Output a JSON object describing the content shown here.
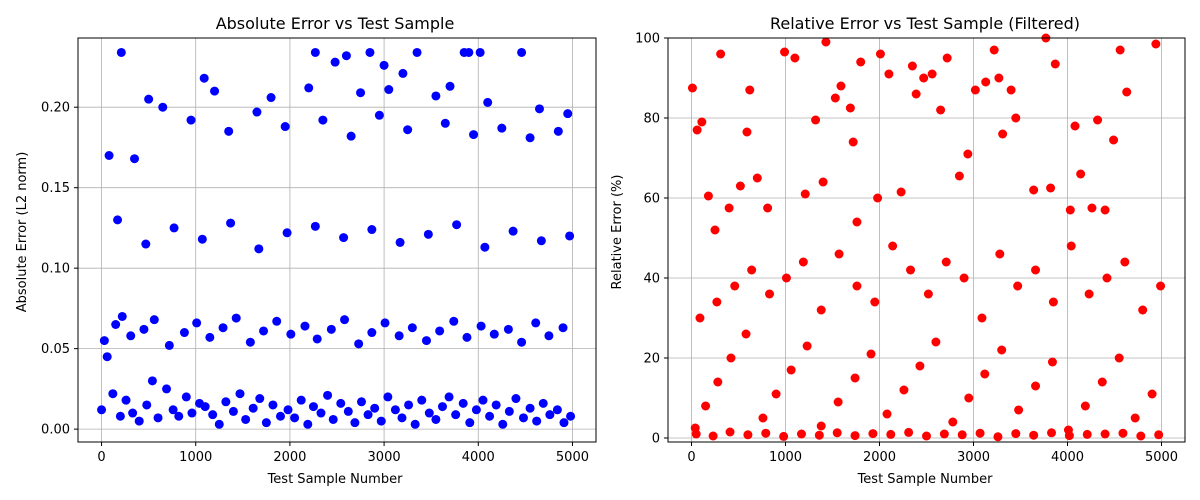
{
  "chart_data": [
    {
      "type": "scatter",
      "title": "Absolute Error vs Test Sample",
      "xlabel": "Test Sample Number",
      "ylabel": "Absolute Error (L2 norm)",
      "xlim": [
        -250,
        5250
      ],
      "ylim": [
        -0.008,
        0.243
      ],
      "xticks": [
        0,
        1000,
        2000,
        3000,
        4000,
        5000
      ],
      "yticks": [
        0.0,
        0.05,
        0.1,
        0.15,
        0.2
      ],
      "ytick_labels": [
        "0.00",
        "0.05",
        "0.10",
        "0.15",
        "0.20"
      ],
      "grid": true,
      "color": "#0000ff",
      "series": [
        {
          "x": [
            0,
            60,
            120,
            200,
            260,
            330,
            400,
            480,
            540,
            600,
            690,
            760,
            820,
            900,
            960,
            1040,
            1100,
            1180,
            1250,
            1320,
            1400,
            1470,
            1530,
            1610,
            1680,
            1750,
            1820,
            1900,
            1980,
            2050,
            2120,
            2190,
            2250,
            2330,
            2400,
            2460,
            2540,
            2620,
            2690,
            2760,
            2830,
            2900,
            2970,
            3040,
            3120,
            3190,
            3260,
            3330,
            3400,
            3480,
            3550,
            3620,
            3690,
            3760,
            3840,
            3910,
            3980,
            4050,
            4120,
            4190,
            4260,
            4330,
            4400,
            4480,
            4550,
            4620,
            4690,
            4760,
            4840,
            4910,
            4980,
            30,
            150,
            220,
            310,
            450,
            560,
            720,
            880,
            1010,
            1150,
            1290,
            1430,
            1580,
            1720,
            1860,
            2010,
            2160,
            2290,
            2440,
            2580,
            2730,
            2870,
            3010,
            3160,
            3300,
            3450,
            3590,
            3740,
            3880,
            4030,
            4170,
            4320,
            4460,
            4610,
            4750,
            4900,
            210,
            1090,
            2270,
            2480,
            2850,
            3350,
            3850,
            3900,
            4020,
            4460,
            3000,
            3700,
            2600,
            3200,
            500,
            1200,
            1800,
            2200,
            2750,
            3050,
            3550,
            4100,
            4650,
            4950,
            80,
            350,
            650,
            950,
            1350,
            1650,
            1950,
            2350,
            2650,
            2950,
            3250,
            3650,
            3950,
            4250,
            4550,
            4850,
            170,
            470,
            770,
            1070,
            1370,
            1670,
            1970,
            2270,
            2570,
            2870,
            3170,
            3470,
            3770,
            4070,
            4370,
            4670,
            4970
          ],
          "y": [
            0.012,
            0.045,
            0.022,
            0.008,
            0.018,
            0.01,
            0.005,
            0.015,
            0.03,
            0.007,
            0.025,
            0.012,
            0.008,
            0.02,
            0.01,
            0.016,
            0.014,
            0.009,
            0.003,
            0.017,
            0.011,
            0.022,
            0.006,
            0.013,
            0.019,
            0.004,
            0.015,
            0.008,
            0.012,
            0.007,
            0.018,
            0.003,
            0.014,
            0.01,
            0.021,
            0.006,
            0.016,
            0.011,
            0.004,
            0.017,
            0.009,
            0.013,
            0.005,
            0.02,
            0.012,
            0.007,
            0.015,
            0.003,
            0.018,
            0.01,
            0.006,
            0.014,
            0.02,
            0.009,
            0.016,
            0.004,
            0.012,
            0.018,
            0.008,
            0.015,
            0.003,
            0.011,
            0.019,
            0.007,
            0.013,
            0.005,
            0.016,
            0.009,
            0.012,
            0.004,
            0.008,
            0.055,
            0.065,
            0.07,
            0.058,
            0.062,
            0.068,
            0.052,
            0.06,
            0.066,
            0.057,
            0.063,
            0.069,
            0.054,
            0.061,
            0.067,
            0.059,
            0.064,
            0.056,
            0.062,
            0.068,
            0.053,
            0.06,
            0.066,
            0.058,
            0.063,
            0.055,
            0.061,
            0.067,
            0.057,
            0.064,
            0.059,
            0.062,
            0.054,
            0.066,
            0.058,
            0.063,
            0.234,
            0.218,
            0.234,
            0.228,
            0.234,
            0.234,
            0.234,
            0.234,
            0.234,
            0.234,
            0.226,
            0.213,
            0.232,
            0.221,
            0.205,
            0.21,
            0.206,
            0.212,
            0.209,
            0.211,
            0.207,
            0.203,
            0.199,
            0.196,
            0.17,
            0.168,
            0.2,
            0.192,
            0.185,
            0.197,
            0.188,
            0.192,
            0.182,
            0.195,
            0.186,
            0.19,
            0.183,
            0.187,
            0.181,
            0.185,
            0.13,
            0.115,
            0.125,
            0.118,
            0.128,
            0.112,
            0.122,
            0.126,
            0.119,
            0.124,
            0.116,
            0.121,
            0.127,
            0.113,
            0.123,
            0.117,
            0.12
          ]
        }
      ]
    },
    {
      "type": "scatter",
      "title": "Relative Error vs Test Sample (Filtered)",
      "xlabel": "Test Sample Number",
      "ylabel": "Relative Error (%)",
      "xlim": [
        -250,
        5250
      ],
      "ylim": [
        -1,
        100
      ],
      "xticks": [
        0,
        1000,
        2000,
        3000,
        4000,
        5000
      ],
      "yticks": [
        0,
        20,
        40,
        60,
        80,
        100
      ],
      "ytick_labels": [
        "0",
        "20",
        "40",
        "60",
        "80",
        "100"
      ],
      "grid": true,
      "color": "#ff0000",
      "series": [
        {
          "x": [
            10,
            60,
            110,
            180,
            250,
            310,
            400,
            520,
            590,
            620,
            700,
            810,
            990,
            1100,
            1210,
            1320,
            1400,
            1430,
            1530,
            1590,
            1690,
            1720,
            1760,
            1800,
            1980,
            2010,
            2100,
            2230,
            2350,
            2390,
            2470,
            2560,
            2650,
            2720,
            2850,
            2940,
            3020,
            3130,
            3220,
            3270,
            3310,
            3400,
            3450,
            3640,
            3770,
            3820,
            3870,
            4030,
            4080,
            4140,
            4260,
            4320,
            4400,
            4490,
            4560,
            4630,
            4940,
            40,
            150,
            280,
            420,
            580,
            760,
            900,
            1060,
            1230,
            1380,
            1560,
            1740,
            1910,
            2080,
            2260,
            2430,
            2600,
            2780,
            2950,
            3120,
            3300,
            3480,
            3660,
            3840,
            4010,
            4190,
            4370,
            4550,
            4720,
            4900,
            90,
            270,
            460,
            640,
            830,
            1010,
            1190,
            1380,
            1570,
            1760,
            1950,
            2140,
            2330,
            2520,
            2710,
            2900,
            3090,
            3280,
            3470,
            3660,
            3850,
            4040,
            4230,
            4420,
            4610,
            4800,
            4990,
            50,
            230,
            410,
            600,
            790,
            980,
            1170,
            1360,
            1550,
            1740,
            1930,
            2120,
            2310,
            2500,
            2690,
            2880,
            3070,
            3260,
            3450,
            3640,
            3830,
            4020,
            4210,
            4400,
            4590,
            4780,
            4970
          ],
          "y": [
            87.5,
            77,
            79,
            60.5,
            52,
            96,
            57.5,
            63,
            76.5,
            87,
            65,
            57.5,
            96.5,
            95,
            61,
            79.5,
            64,
            99,
            85,
            88,
            82.5,
            74,
            54,
            94,
            60,
            96,
            91,
            61.5,
            93,
            86,
            90,
            91,
            82,
            95,
            65.5,
            71,
            87,
            89,
            97,
            90,
            76,
            87,
            80,
            62,
            100,
            62.5,
            93.5,
            57,
            78,
            66,
            57.5,
            79.5,
            57,
            74.5,
            97,
            86.5,
            98.5,
            2.5,
            8,
            14,
            20,
            26,
            5,
            11,
            17,
            23,
            3,
            9,
            15,
            21,
            6,
            12,
            18,
            24,
            4,
            10,
            16,
            22,
            7,
            13,
            19,
            2,
            8,
            14,
            20,
            5,
            11,
            30,
            34,
            38,
            42,
            36,
            40,
            44,
            32,
            46,
            38,
            34,
            48,
            42,
            36,
            44,
            40,
            30,
            46,
            38,
            42,
            34,
            48,
            36,
            40,
            44,
            32,
            38,
            1,
            0.5,
            1.5,
            0.8,
            1.2,
            0.4,
            1,
            0.7,
            1.3,
            0.6,
            1.1,
            0.9,
            1.4,
            0.5,
            1,
            0.8,
            1.2,
            0.3,
            1.1,
            0.7,
            1.3,
            0.6,
            0.9,
            1,
            1.2,
            0.5,
            0.8
          ]
        }
      ]
    }
  ]
}
